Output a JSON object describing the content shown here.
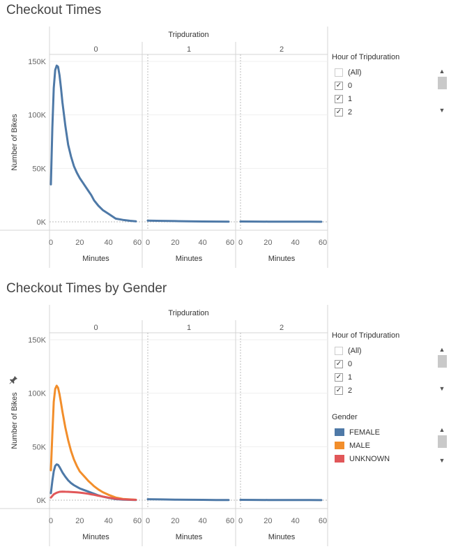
{
  "charts_common": {
    "column_title": "Tripduration",
    "columns": [
      "0",
      "1",
      "2"
    ],
    "x_axis_title": "Minutes",
    "x_ticks": [
      "0",
      "20",
      "40",
      "60"
    ],
    "y_axis_title": "Number of Bikes",
    "y_ticks": [
      "0K",
      "50K",
      "100K",
      "150K"
    ]
  },
  "chart1": {
    "title": "Checkout Times"
  },
  "chart2": {
    "title": "Checkout Times by Gender"
  },
  "legend1": {
    "title": "Hour of Tripduration",
    "items": [
      {
        "label": "(All)",
        "checked": false
      },
      {
        "label": "0",
        "checked": true
      },
      {
        "label": "1",
        "checked": true
      },
      {
        "label": "2",
        "checked": true
      }
    ]
  },
  "legend2": {
    "title": "Hour of Tripduration",
    "items": [
      {
        "label": "(All)",
        "checked": false
      },
      {
        "label": "0",
        "checked": true
      },
      {
        "label": "1",
        "checked": true
      },
      {
        "label": "2",
        "checked": true
      }
    ]
  },
  "gender_legend": {
    "title": "Gender",
    "items": [
      {
        "label": "FEMALE",
        "color": "#4e79a7"
      },
      {
        "label": "MALE",
        "color": "#f28e2b"
      },
      {
        "label": "UNKNOWN",
        "color": "#e15759"
      }
    ]
  },
  "chart_data": [
    {
      "type": "line",
      "title": "Checkout Times",
      "facet": "Tripduration",
      "xlabel": "Minutes",
      "ylabel": "Number of Bikes",
      "xlim": [
        0,
        60
      ],
      "ylim": [
        0,
        150000
      ],
      "panels": [
        {
          "label": "0",
          "series": [
            {
              "color": "#4e79a7",
              "x": [
                0,
                1,
                2,
                3,
                4,
                5,
                6,
                7,
                8,
                9,
                10,
                12,
                14,
                16,
                18,
                20,
                22,
                24,
                26,
                28,
                30,
                33,
                36,
                40,
                45,
                50,
                55,
                59
              ],
              "y": [
                35000,
                88000,
                125000,
                142000,
                146000,
                145000,
                137000,
                125000,
                112000,
                101000,
                90000,
                72000,
                61000,
                52000,
                46000,
                41000,
                37000,
                33000,
                29000,
                25000,
                20000,
                15000,
                11000,
                7500,
                3000,
                1800,
                1000,
                500
              ]
            }
          ]
        },
        {
          "label": "1",
          "series": [
            {
              "color": "#4e79a7",
              "x": [
                0,
                10,
                20,
                30,
                40,
                50,
                59
              ],
              "y": [
                1200,
                900,
                700,
                500,
                350,
                250,
                200
              ]
            }
          ]
        },
        {
          "label": "2",
          "series": [
            {
              "color": "#4e79a7",
              "x": [
                0,
                10,
                20,
                30,
                40,
                50,
                59
              ],
              "y": [
                300,
                250,
                200,
                150,
                120,
                100,
                80
              ]
            }
          ]
        }
      ]
    },
    {
      "type": "line",
      "title": "Checkout Times by Gender",
      "facet": "Tripduration",
      "xlabel": "Minutes",
      "ylabel": "Number of Bikes",
      "xlim": [
        0,
        60
      ],
      "ylim": [
        0,
        150000
      ],
      "panels": [
        {
          "label": "0",
          "series": [
            {
              "name": "MALE",
              "color": "#f28e2b",
              "x": [
                0,
                1,
                2,
                3,
                4,
                5,
                6,
                7,
                8,
                10,
                12,
                14,
                16,
                18,
                20,
                22,
                24,
                26,
                28,
                30,
                33,
                36,
                40,
                45,
                50,
                55,
                59
              ],
              "y": [
                28000,
                62000,
                92000,
                104000,
                107000,
                105000,
                99000,
                91000,
                83000,
                68000,
                56000,
                46000,
                38000,
                32000,
                27000,
                24000,
                21000,
                18000,
                15500,
                13000,
                10000,
                7500,
                5000,
                2500,
                1200,
                700,
                400
              ]
            },
            {
              "name": "FEMALE",
              "color": "#4e79a7",
              "x": [
                0,
                1,
                2,
                3,
                4,
                5,
                6,
                7,
                8,
                10,
                12,
                14,
                16,
                18,
                20,
                22,
                24,
                26,
                28,
                30,
                33,
                36,
                40,
                45,
                50,
                55,
                59
              ],
              "y": [
                6500,
                18000,
                27000,
                32000,
                33500,
                33000,
                31000,
                28500,
                26000,
                22000,
                18500,
                16000,
                14000,
                12500,
                11000,
                10000,
                9000,
                8000,
                7000,
                6000,
                4500,
                3300,
                2200,
                1000,
                500,
                300,
                200
              ]
            },
            {
              "name": "UNKNOWN",
              "color": "#e15759",
              "x": [
                0,
                2,
                4,
                6,
                8,
                10,
                12,
                14,
                16,
                18,
                20,
                22,
                24,
                26,
                28,
                30,
                33,
                36,
                40,
                45,
                50,
                55,
                59
              ],
              "y": [
                2500,
                5500,
                7000,
                7800,
                8000,
                7900,
                7800,
                7700,
                7500,
                7300,
                7100,
                6800,
                6400,
                6000,
                5500,
                5000,
                4200,
                3400,
                2400,
                1400,
                800,
                500,
                300
              ]
            }
          ]
        },
        {
          "label": "1",
          "series": [
            {
              "name": "FEMALE",
              "color": "#4e79a7",
              "x": [
                0,
                10,
                20,
                30,
                40,
                50,
                59
              ],
              "y": [
                900,
                700,
                550,
                400,
                300,
                200,
                150
              ]
            }
          ]
        },
        {
          "label": "2",
          "series": [
            {
              "name": "FEMALE",
              "color": "#4e79a7",
              "x": [
                0,
                10,
                20,
                30,
                40,
                50,
                59
              ],
              "y": [
                300,
                250,
                200,
                150,
                120,
                100,
                80
              ]
            }
          ]
        }
      ]
    }
  ]
}
